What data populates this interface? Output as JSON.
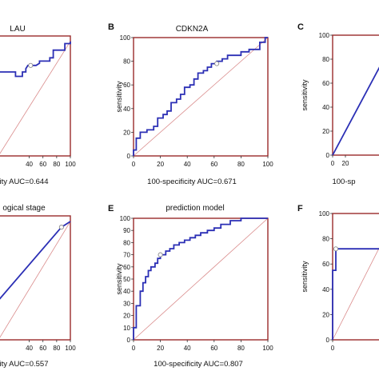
{
  "figure": {
    "panel_letters": [
      "",
      "B",
      "C",
      "",
      "E",
      "F"
    ]
  },
  "chart_data": [
    {
      "type": "line",
      "panel": "",
      "title": "LAU",
      "xlabel": "",
      "ylabel": "",
      "footer": "ity AUC=0.644",
      "xlim": [
        -5,
        100
      ],
      "ylim": [
        -5,
        105
      ],
      "x_ticks": [
        40,
        60,
        80,
        100
      ],
      "y_ticks": [],
      "diagonal": true,
      "series": [
        {
          "x": [
            -5,
            20,
            20,
            30,
            30,
            35,
            35,
            38,
            42,
            50,
            55,
            55,
            70,
            70,
            75,
            75,
            87,
            92,
            92,
            100,
            100
          ],
          "y": [
            72,
            72,
            68,
            68,
            72,
            72,
            75,
            78,
            78,
            78,
            80,
            82,
            82,
            85,
            85,
            92,
            92,
            92,
            98,
            98,
            100
          ]
        }
      ],
      "marker": {
        "x": 42,
        "y": 78
      },
      "colors": {
        "curve": "#2b2fb5",
        "diagonal": "#d98a8a",
        "frame": "#9a2a2a"
      }
    },
    {
      "type": "line",
      "panel": "B",
      "title": "CDKN2A",
      "xlabel": "",
      "ylabel": "sensitivity",
      "footer": "100-specificity  AUC=0.671",
      "xlim": [
        0,
        100
      ],
      "ylim": [
        0,
        100
      ],
      "x_ticks": [
        0,
        20,
        40,
        60,
        80,
        100
      ],
      "y_ticks": [
        0,
        20,
        40,
        60,
        80,
        100
      ],
      "diagonal": true,
      "series": [
        {
          "x": [
            0,
            0,
            2,
            2,
            5,
            5,
            10,
            10,
            15,
            15,
            18,
            18,
            22,
            22,
            25,
            25,
            28,
            28,
            32,
            32,
            35,
            35,
            38,
            38,
            42,
            42,
            45,
            45,
            48,
            48,
            52,
            52,
            55,
            55,
            58,
            58,
            62,
            62,
            66,
            66,
            70,
            70,
            80,
            80,
            86,
            86,
            94,
            94,
            98,
            98,
            100
          ],
          "y": [
            0,
            5,
            5,
            15,
            15,
            20,
            20,
            22,
            22,
            25,
            25,
            32,
            32,
            35,
            35,
            38,
            38,
            45,
            45,
            48,
            48,
            52,
            52,
            58,
            58,
            60,
            60,
            65,
            65,
            70,
            70,
            72,
            72,
            75,
            75,
            78,
            78,
            80,
            80,
            82,
            82,
            85,
            85,
            88,
            88,
            90,
            90,
            96,
            96,
            100,
            100
          ]
        }
      ],
      "marker": {
        "x": 62,
        "y": 78
      },
      "colors": {
        "curve": "#2b2fb5",
        "diagonal": "#d98a8a",
        "frame": "#9a2a2a"
      }
    },
    {
      "type": "line",
      "panel": "C",
      "title": "",
      "xlabel": "",
      "ylabel": "sensitivity",
      "footer": "100-sp",
      "xlim": [
        0,
        100
      ],
      "ylim": [
        0,
        100
      ],
      "x_ticks": [
        0,
        20
      ],
      "y_ticks": [
        0,
        20,
        40,
        60,
        80,
        100
      ],
      "diagonal": true,
      "series": [
        {
          "x": [
            0,
            100
          ],
          "y": [
            0,
            100
          ]
        }
      ],
      "marker": null,
      "colors": {
        "curve": "#2b2fb5",
        "diagonal": "#d98a8a",
        "frame": "#9a2a2a"
      }
    },
    {
      "type": "line",
      "panel": "",
      "title": "ogical stage",
      "xlabel": "",
      "ylabel": "",
      "footer": "ity AUC=0.557",
      "xlim": [
        -5,
        100
      ],
      "ylim": [
        -5,
        105
      ],
      "x_ticks": [
        40,
        60,
        80,
        100
      ],
      "y_ticks": [],
      "diagonal": true,
      "series": [
        {
          "x": [
            -5,
            87,
            100
          ],
          "y": [
            30,
            95,
            100
          ]
        }
      ],
      "marker": {
        "x": 87,
        "y": 95
      },
      "colors": {
        "curve": "#2b2fb5",
        "diagonal": "#d98a8a",
        "frame": "#9a2a2a"
      }
    },
    {
      "type": "line",
      "panel": "E",
      "title": "prediction model",
      "xlabel": "",
      "ylabel": "sensitivity",
      "footer": "100-specificity  AUC=0.807",
      "xlim": [
        0,
        100
      ],
      "ylim": [
        0,
        100
      ],
      "x_ticks": [
        0,
        20,
        40,
        60,
        80,
        100
      ],
      "y_ticks": [
        0,
        10,
        20,
        30,
        40,
        50,
        60,
        70,
        80,
        90,
        100
      ],
      "diagonal": true,
      "series": [
        {
          "x": [
            0,
            0,
            2,
            2,
            5,
            5,
            7,
            7,
            9,
            9,
            11,
            11,
            13,
            13,
            16,
            16,
            18,
            18,
            20,
            20,
            24,
            24,
            27,
            27,
            30,
            30,
            34,
            34,
            38,
            38,
            42,
            42,
            46,
            46,
            50,
            50,
            55,
            55,
            60,
            60,
            65,
            65,
            72,
            72,
            80,
            80,
            100
          ],
          "y": [
            0,
            10,
            10,
            28,
            28,
            40,
            40,
            47,
            47,
            52,
            52,
            57,
            57,
            60,
            60,
            63,
            63,
            67,
            67,
            70,
            70,
            73,
            73,
            75,
            75,
            78,
            78,
            80,
            80,
            82,
            82,
            84,
            84,
            86,
            86,
            88,
            88,
            90,
            90,
            92,
            92,
            95,
            95,
            98,
            98,
            100,
            100
          ]
        }
      ],
      "marker": {
        "x": 20,
        "y": 70
      },
      "colors": {
        "curve": "#2b2fb5",
        "diagonal": "#d98a8a",
        "frame": "#9a2a2a"
      }
    },
    {
      "type": "line",
      "panel": "F",
      "title": "",
      "xlabel": "",
      "ylabel": "sensitivity",
      "footer": "",
      "xlim": [
        0,
        100
      ],
      "ylim": [
        0,
        100
      ],
      "x_ticks": [
        0
      ],
      "y_ticks": [
        0,
        20,
        40,
        60,
        80,
        100
      ],
      "diagonal": true,
      "series": [
        {
          "x": [
            0,
            0,
            5,
            5,
            100
          ],
          "y": [
            0,
            55,
            55,
            72,
            72
          ]
        }
      ],
      "marker": {
        "x": 5,
        "y": 72
      },
      "colors": {
        "curve": "#2b2fb5",
        "diagonal": "#d98a8a",
        "frame": "#9a2a2a"
      }
    }
  ]
}
